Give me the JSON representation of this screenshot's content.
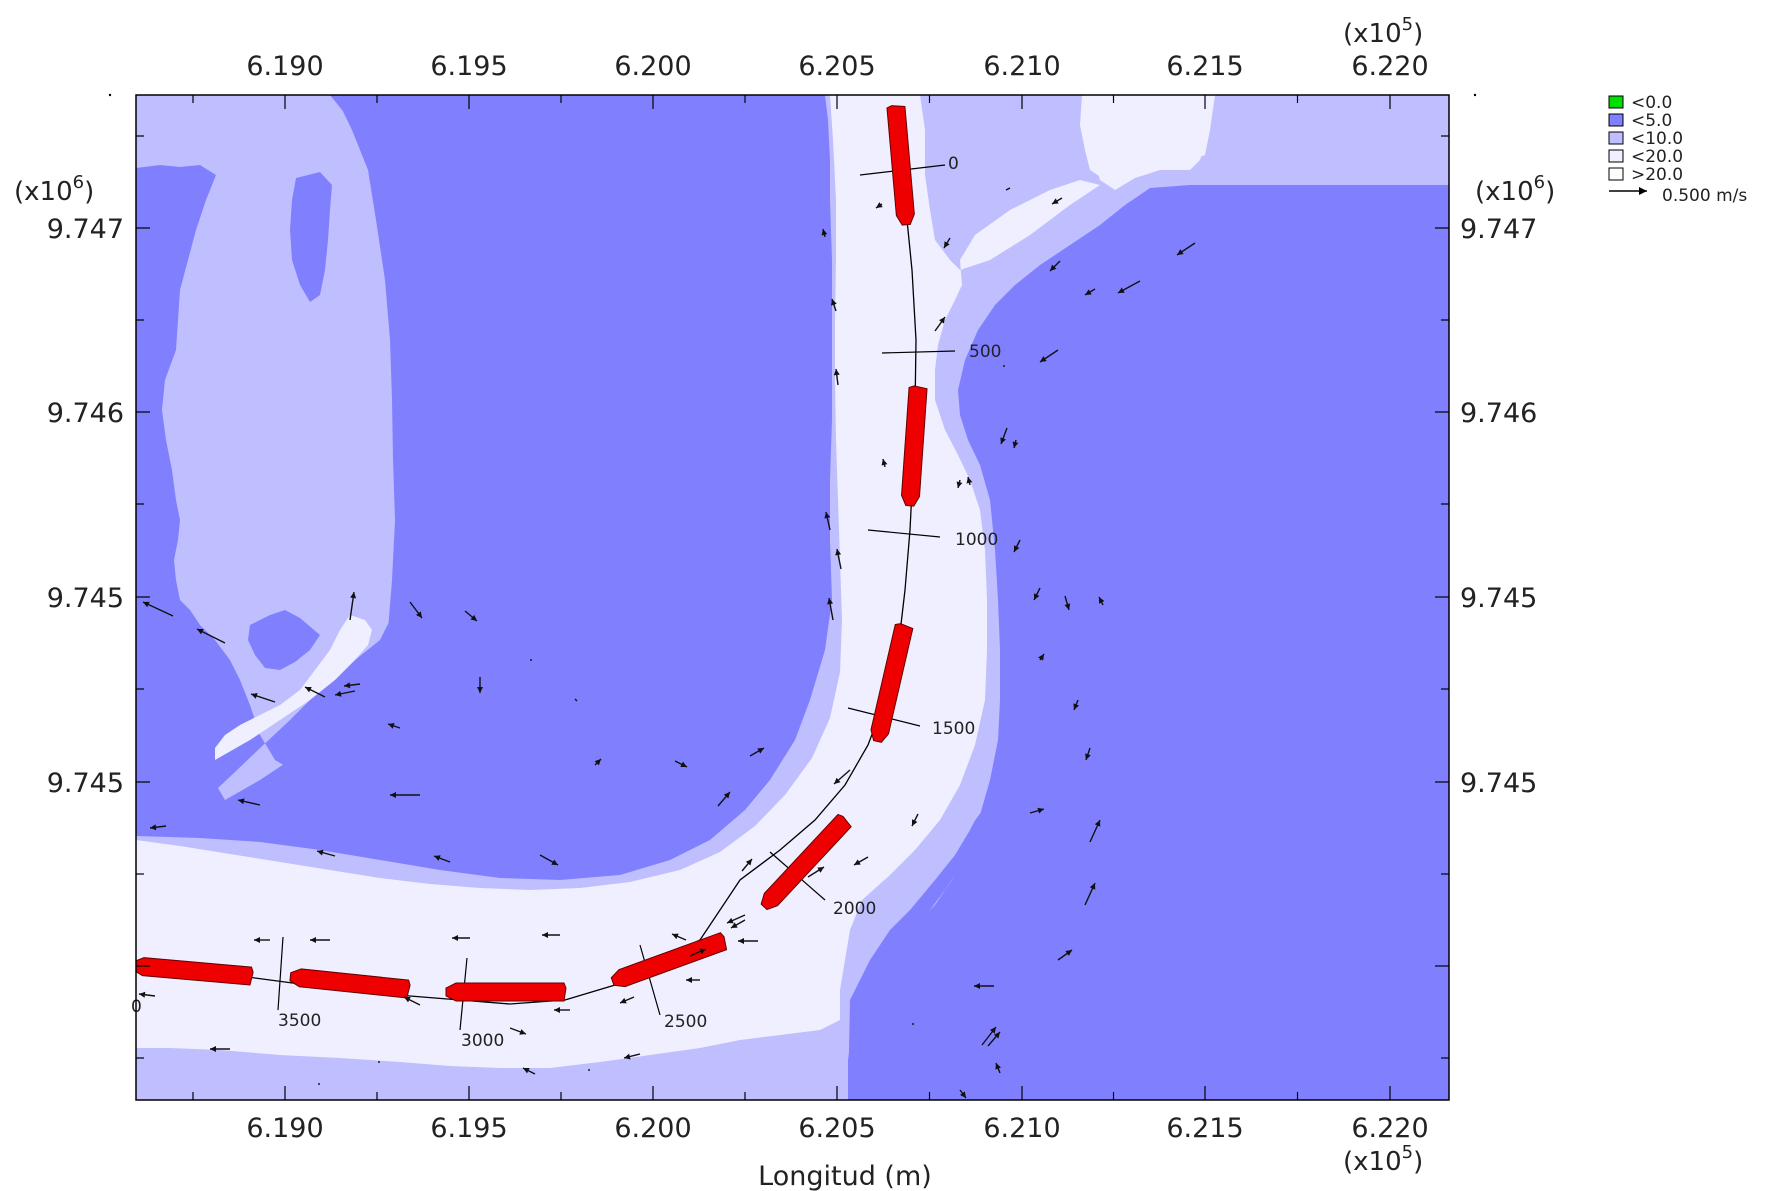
{
  "colors": {
    "lt0": "#00dd00",
    "lt5": "#8080ff",
    "lt10": "#bfbfff",
    "lt20": "#efefff",
    "gt20": "#ffffff",
    "ship": "#ee0000",
    "frame": "#000000"
  },
  "axes": {
    "bottom_title": "Longitud (m)",
    "x_ticks": [
      "6.190",
      "6.195",
      "6.200",
      "6.205",
      "6.210",
      "6.215",
      "6.220"
    ],
    "x_multiplier_base": "(x10",
    "x_multiplier_exp": "5",
    "x_multiplier_close": ")",
    "y_ticks": [
      "9.747",
      "9.746",
      "9.745",
      "9.745"
    ],
    "y_multiplier_base": "(x10",
    "y_multiplier_exp": "6",
    "y_multiplier_close": ")"
  },
  "legend": {
    "items": [
      {
        "label": "<0.0",
        "color_key": "lt0"
      },
      {
        "label": "<5.0",
        "color_key": "lt5"
      },
      {
        "label": "<10.0",
        "color_key": "lt10"
      },
      {
        "label": "<20.0",
        "color_key": "lt20"
      },
      {
        "label": ">20.0",
        "color_key": "gt20"
      }
    ],
    "vector_label": "0.500 m/s"
  },
  "track": {
    "chainages": [
      "0",
      "500",
      "1000",
      "1500",
      "2000",
      "2500",
      "3000",
      "3500"
    ],
    "partial_label": "0"
  }
}
